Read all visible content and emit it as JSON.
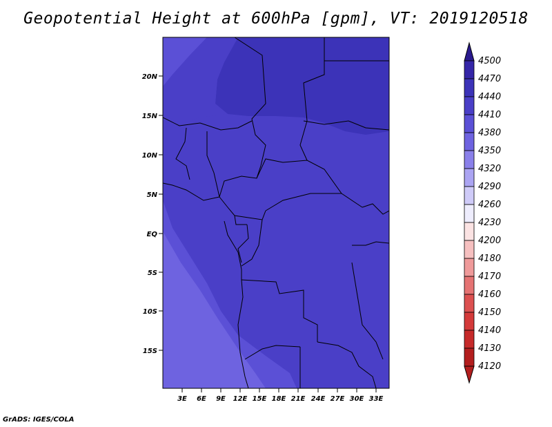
{
  "title": "Geopotential Height at 600hPa [gpm], VT: 2019120518",
  "credit": "GrADS: IGES/COLA",
  "map": {
    "lat_labels": [
      "20N",
      "15N",
      "10N",
      "5N",
      "EQ",
      "5S",
      "10S",
      "15S"
    ],
    "lon_labels": [
      "3E",
      "6E",
      "9E",
      "12E",
      "15E",
      "18E",
      "21E",
      "24E",
      "27E",
      "30E",
      "33E"
    ]
  },
  "colorbar": {
    "levels": [
      "4500",
      "4470",
      "4440",
      "4410",
      "4380",
      "4350",
      "4320",
      "4290",
      "4260",
      "4230",
      "4200",
      "4180",
      "4170",
      "4160",
      "4150",
      "4140",
      "4130",
      "4120"
    ],
    "colors": [
      "#2a1a8e",
      "#3526a8",
      "#3c33b8",
      "#4a3fc7",
      "#5b50d6",
      "#6e63e0",
      "#8a80ea",
      "#aba4f2",
      "#cfcbf8",
      "#eeedfd",
      "#fbe3e3",
      "#f6c0c0",
      "#ef9a9a",
      "#e57373",
      "#dc5050",
      "#d43a3a",
      "#c62a2a",
      "#b31e1e"
    ]
  }
}
